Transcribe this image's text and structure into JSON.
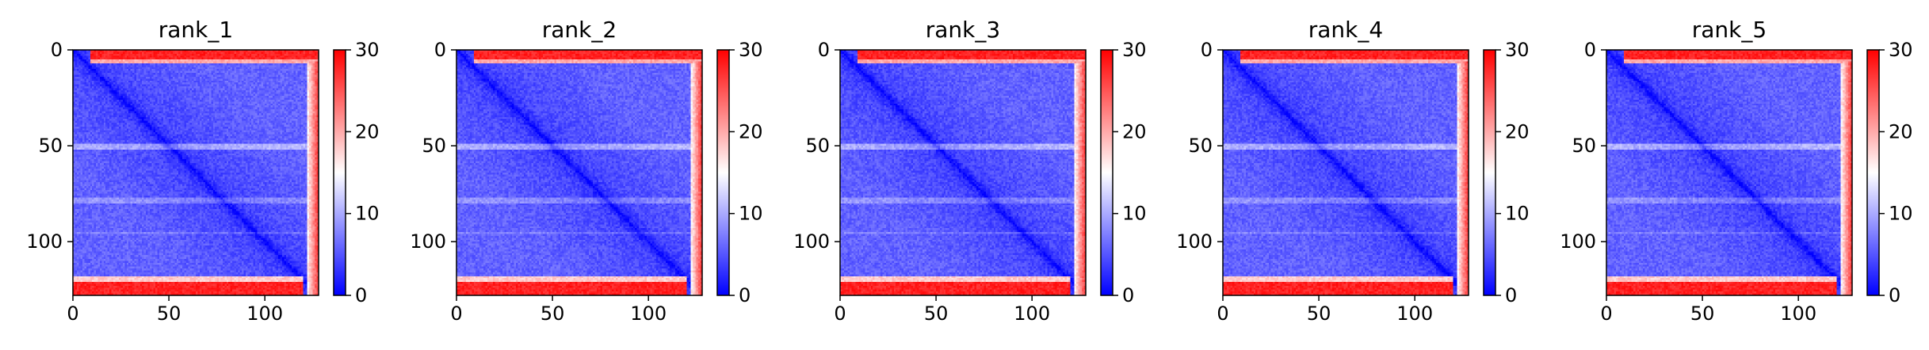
{
  "chart_data": [
    {
      "type": "heatmap",
      "title": "rank_1",
      "xlabel": "",
      "ylabel": "",
      "xlim": [
        0,
        128
      ],
      "ylim": [
        128,
        0
      ],
      "x_ticks": [
        0,
        50,
        100
      ],
      "y_ticks": [
        0,
        50,
        100
      ],
      "colorbar": {
        "vmin": 0,
        "vmax": 30,
        "ticks": [
          0,
          10,
          20,
          30
        ],
        "colors": [
          "#0000ff",
          "#ffffff",
          "#ff0000"
        ]
      },
      "grid": false,
      "structure": {
        "size": 128,
        "diagonal_value": 0,
        "bulk_value": 4,
        "edge_value": 28,
        "edge_bands": "top rows, bottom rows and right-hand columns near 30"
      }
    },
    {
      "type": "heatmap",
      "title": "rank_2",
      "xlabel": "",
      "ylabel": "",
      "xlim": [
        0,
        128
      ],
      "ylim": [
        128,
        0
      ],
      "x_ticks": [
        0,
        50,
        100
      ],
      "y_ticks": [
        0,
        50,
        100
      ],
      "colorbar": {
        "vmin": 0,
        "vmax": 30,
        "ticks": [
          0,
          10,
          20,
          30
        ],
        "colors": [
          "#0000ff",
          "#ffffff",
          "#ff0000"
        ]
      },
      "grid": false,
      "structure": {
        "size": 128,
        "diagonal_value": 0,
        "bulk_value": 4,
        "edge_value": 28,
        "edge_bands": "top rows, bottom rows and right-hand columns near 30"
      }
    },
    {
      "type": "heatmap",
      "title": "rank_3",
      "xlabel": "",
      "ylabel": "",
      "xlim": [
        0,
        128
      ],
      "ylim": [
        128,
        0
      ],
      "x_ticks": [
        0,
        50,
        100
      ],
      "y_ticks": [
        0,
        50,
        100
      ],
      "colorbar": {
        "vmin": 0,
        "vmax": 30,
        "ticks": [
          0,
          10,
          20,
          30
        ],
        "colors": [
          "#0000ff",
          "#ffffff",
          "#ff0000"
        ]
      },
      "grid": false,
      "structure": {
        "size": 128,
        "diagonal_value": 0,
        "bulk_value": 4,
        "edge_value": 28,
        "edge_bands": "top rows, bottom rows and right-hand columns near 30"
      }
    },
    {
      "type": "heatmap",
      "title": "rank_4",
      "xlabel": "",
      "ylabel": "",
      "xlim": [
        0,
        128
      ],
      "ylim": [
        128,
        0
      ],
      "x_ticks": [
        0,
        50,
        100
      ],
      "y_ticks": [
        0,
        50,
        100
      ],
      "colorbar": {
        "vmin": 0,
        "vmax": 30,
        "ticks": [
          0,
          10,
          20,
          30
        ],
        "colors": [
          "#0000ff",
          "#ffffff",
          "#ff0000"
        ]
      },
      "grid": false,
      "structure": {
        "size": 128,
        "diagonal_value": 0,
        "bulk_value": 4,
        "edge_value": 28,
        "edge_bands": "top rows, bottom rows and right-hand columns near 30"
      }
    },
    {
      "type": "heatmap",
      "title": "rank_5",
      "xlabel": "",
      "ylabel": "",
      "xlim": [
        0,
        128
      ],
      "ylim": [
        128,
        0
      ],
      "x_ticks": [
        0,
        50,
        100
      ],
      "y_ticks": [
        0,
        50,
        100
      ],
      "colorbar": {
        "vmin": 0,
        "vmax": 30,
        "ticks": [
          0,
          10,
          20,
          30
        ],
        "colors": [
          "#0000ff",
          "#ffffff",
          "#ff0000"
        ]
      },
      "grid": false,
      "structure": {
        "size": 128,
        "diagonal_value": 0,
        "bulk_value": 4,
        "edge_value": 28,
        "edge_bands": "top rows, bottom rows and right-hand columns near 30"
      }
    }
  ]
}
